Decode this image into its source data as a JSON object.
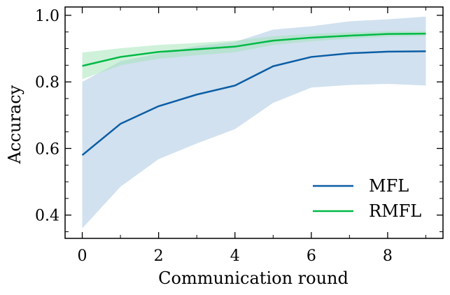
{
  "chart_data": {
    "type": "line",
    "title": "",
    "xlabel": "Communication round",
    "ylabel": "Accuracy",
    "xlim": [
      -0.45,
      9.45
    ],
    "ylim": [
      0.33,
      1.025
    ],
    "xticks": [
      0,
      2,
      4,
      6,
      8
    ],
    "xtick_labels": [
      "0",
      "2",
      "4",
      "6",
      "8"
    ],
    "yticks": [
      0.4,
      0.6,
      0.8,
      1.0
    ],
    "ytick_labels": [
      "0.4",
      "0.6",
      "0.8",
      "1.0"
    ],
    "grid": false,
    "legend_position": "bottom-right",
    "x": [
      0,
      1,
      2,
      3,
      4,
      5,
      6,
      7,
      8,
      9
    ],
    "series": [
      {
        "name": "MFL",
        "color": "#0c5da5",
        "band_color": "#b9d1e6",
        "values": [
          0.58,
          0.674,
          0.727,
          0.762,
          0.789,
          0.847,
          0.875,
          0.886,
          0.891,
          0.892
        ],
        "lower": [
          0.36,
          0.485,
          0.568,
          0.615,
          0.658,
          0.737,
          0.783,
          0.791,
          0.794,
          0.789
        ],
        "upper": [
          0.8,
          0.862,
          0.885,
          0.908,
          0.92,
          0.957,
          0.967,
          0.982,
          0.988,
          0.996
        ]
      },
      {
        "name": "RMFL",
        "color": "#00b945",
        "band_color": "#9fe3b6",
        "values": [
          0.848,
          0.875,
          0.89,
          0.898,
          0.906,
          0.924,
          0.933,
          0.939,
          0.944,
          0.945
        ],
        "lower": [
          0.808,
          0.85,
          0.87,
          0.88,
          0.889,
          0.911,
          0.922,
          0.93,
          0.936,
          0.938
        ],
        "upper": [
          0.888,
          0.901,
          0.911,
          0.917,
          0.924,
          0.937,
          0.944,
          0.949,
          0.952,
          0.952
        ]
      }
    ]
  }
}
